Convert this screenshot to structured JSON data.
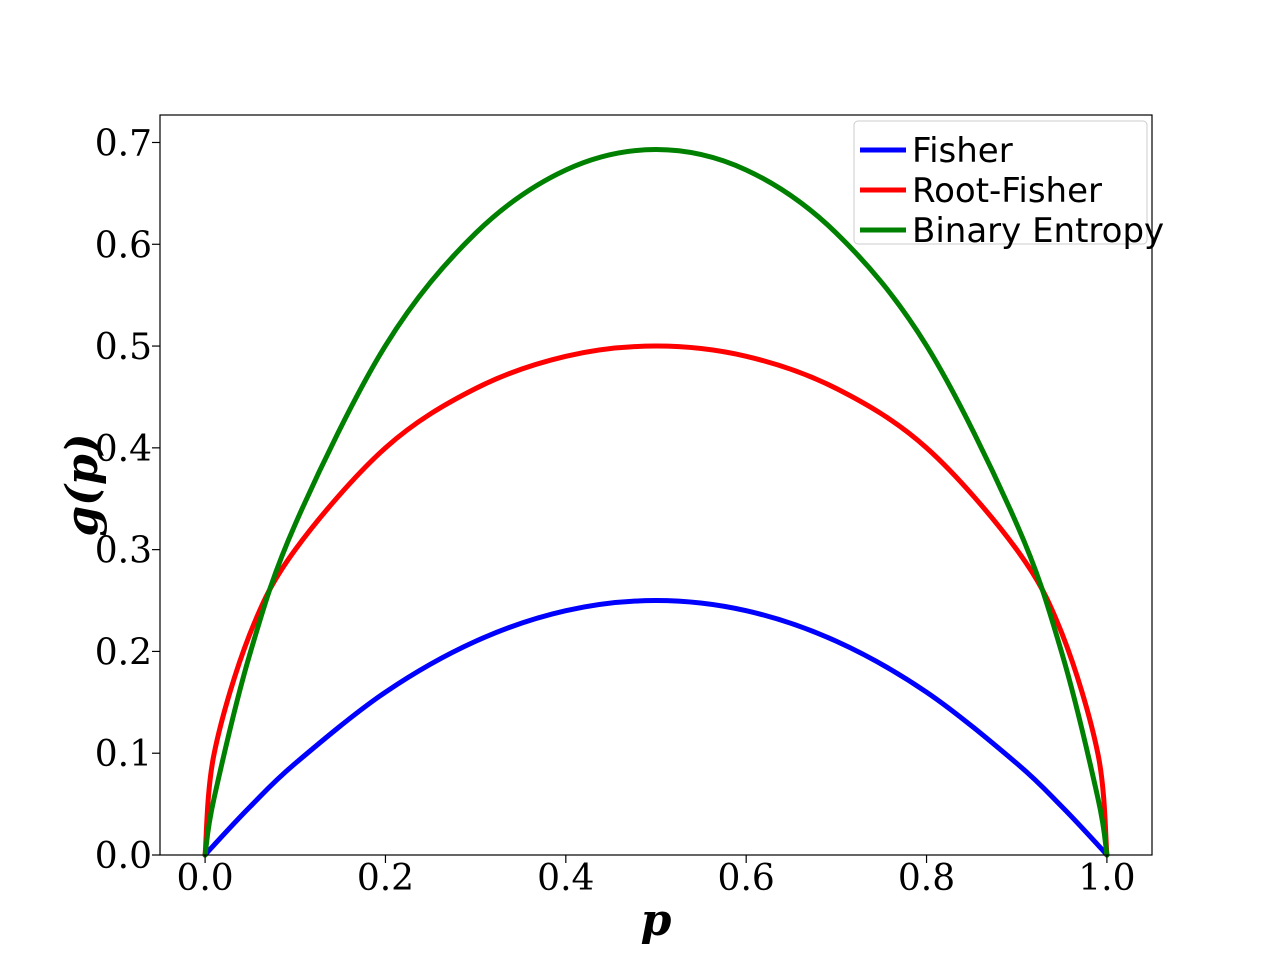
{
  "chart_data": {
    "type": "line",
    "title": "",
    "xlabel": "p",
    "ylabel": "g(p)",
    "xlim": [
      -0.05,
      1.05
    ],
    "ylim": [
      0,
      0.727
    ],
    "x_ticks": [
      "0.0",
      "0.2",
      "0.4",
      "0.6",
      "0.8",
      "1.0"
    ],
    "y_ticks": [
      "0.0",
      "0.1",
      "0.2",
      "0.3",
      "0.4",
      "0.5",
      "0.6",
      "0.7"
    ],
    "grid": false,
    "legend_position": "top-right",
    "x": [
      0.0,
      0.01,
      0.05,
      0.1,
      0.2,
      0.3,
      0.4,
      0.5,
      0.6,
      0.7,
      0.8,
      0.9,
      0.95,
      0.99,
      1.0
    ],
    "series": [
      {
        "name": "Fisher",
        "color": "#0000ff",
        "values": [
          0.0,
          0.0099,
          0.0475,
          0.09,
          0.16,
          0.21,
          0.24,
          0.25,
          0.24,
          0.21,
          0.16,
          0.09,
          0.0475,
          0.0099,
          0.0
        ]
      },
      {
        "name": "Root-Fisher",
        "color": "#ff0000",
        "values": [
          0.0,
          0.0995,
          0.2179,
          0.3,
          0.4,
          0.4583,
          0.4899,
          0.5,
          0.4899,
          0.4583,
          0.4,
          0.3,
          0.2179,
          0.0995,
          0.0
        ]
      },
      {
        "name": "Binary Entropy",
        "color": "#008000",
        "values": [
          0.0,
          0.056,
          0.1985,
          0.3251,
          0.5004,
          0.6109,
          0.673,
          0.6931,
          0.673,
          0.6109,
          0.5004,
          0.3251,
          0.1985,
          0.056,
          0.0
        ]
      }
    ]
  }
}
